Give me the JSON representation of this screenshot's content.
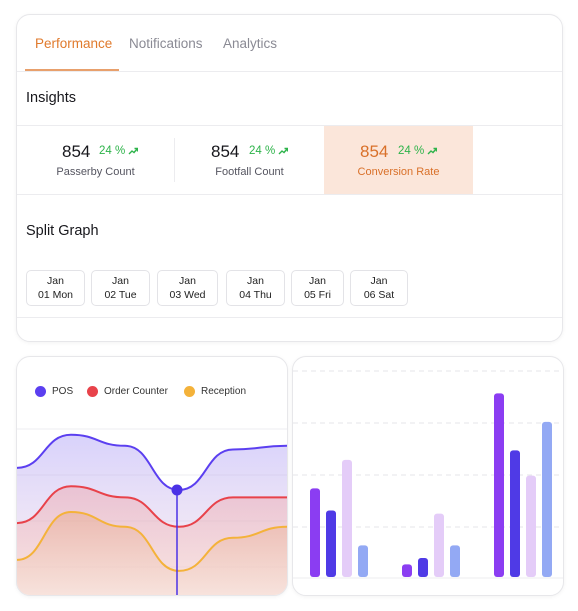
{
  "tabs": [
    {
      "label": "Performance",
      "active": true
    },
    {
      "label": "Notifications",
      "active": false
    },
    {
      "label": "Analytics",
      "active": false
    }
  ],
  "insights": {
    "title": "Insights",
    "metrics": [
      {
        "value": "854",
        "change": "24 %",
        "trend_icon": "trend-up-icon",
        "label": "Passerby Count",
        "highlighted": false
      },
      {
        "value": "854",
        "change": "24 %",
        "trend_icon": "trend-up-icon",
        "label": "Footfall Count",
        "highlighted": false
      },
      {
        "value": "854",
        "change": "24 %",
        "trend_icon": "trend-up-icon",
        "label": "Conversion Rate",
        "highlighted": true
      }
    ]
  },
  "split_graph": {
    "title": "Split Graph",
    "dates": [
      {
        "month": "Jan",
        "day": "01 Mon"
      },
      {
        "month": "Jan",
        "day": "02 Tue"
      },
      {
        "month": "Jan",
        "day": "03 Wed"
      },
      {
        "month": "Jan",
        "day": "04 Thu"
      },
      {
        "month": "Jan",
        "day": "05 Fri"
      },
      {
        "month": "Jan",
        "day": "06 Sat"
      }
    ]
  },
  "colors": {
    "accent": "#e07a2c",
    "positive": "#2db34a",
    "highlight_bg": "#fbe6da"
  },
  "chart_data": [
    {
      "type": "area",
      "legend_position": "top",
      "grid": true,
      "series": [
        {
          "name": "POS",
          "color": "#5b3ff0",
          "values": [
            3.4,
            4.3,
            4.0,
            2.8,
            3.9,
            4.0
          ]
        },
        {
          "name": "Order Counter",
          "color": "#e8424a",
          "values": [
            1.9,
            2.9,
            2.6,
            1.8,
            2.6,
            2.6
          ]
        },
        {
          "name": "Reception",
          "color": "#f4b23a",
          "values": [
            0.9,
            2.2,
            1.8,
            0.6,
            1.5,
            1.8
          ]
        }
      ],
      "cursor_index": 3
    },
    {
      "type": "bar",
      "grid": true,
      "groups": [
        {
          "values": [
            2.8,
            2.1,
            3.7,
            1.0
          ],
          "colors": [
            "#8b3df2",
            "#4f3ae6",
            "#e4ccf8",
            "#93a9f4"
          ]
        },
        {
          "values": [
            0.4,
            0.6,
            2.0,
            1.0
          ],
          "colors": [
            "#8b3df2",
            "#4f3ae6",
            "#e4ccf8",
            "#93a9f4"
          ]
        },
        {
          "values": [
            5.8,
            4.0,
            3.2,
            4.9
          ],
          "colors": [
            "#8b3df2",
            "#4f3ae6",
            "#e4ccf8",
            "#93a9f4"
          ]
        }
      ],
      "ylim": [
        0,
        6
      ]
    }
  ]
}
